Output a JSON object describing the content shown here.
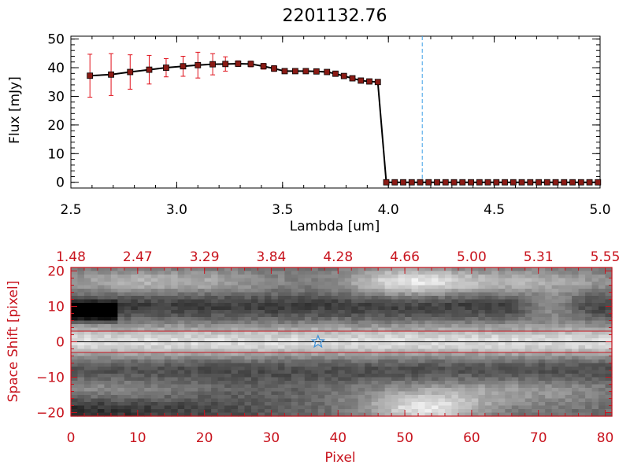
{
  "colors": {
    "axis_top": "#000000",
    "axis_bottom": "#c8141e",
    "errorbar": "#e0101a",
    "marker": "#8a1a14",
    "vline": "#3fa0e6",
    "star": "#3a8fd8",
    "background": "#ffffff"
  },
  "chart_data": [
    {
      "type": "line",
      "title": "2201132.76",
      "xlabel": "Lambda [um]",
      "ylabel": "Flux [mJy]",
      "xlim": [
        2.5,
        5.0
      ],
      "ylim": [
        -2,
        51
      ],
      "xticks": [
        2.5,
        3.0,
        3.5,
        4.0,
        4.5,
        5.0
      ],
      "xtick_labels": [
        "2.5",
        "3.0",
        "3.5",
        "4.0",
        "4.5",
        "5.0"
      ],
      "yticks": [
        0,
        10,
        20,
        30,
        40,
        50
      ],
      "ytick_labels": [
        "0",
        "10",
        "20",
        "30",
        "40",
        "50"
      ],
      "vline_x": 4.16,
      "series": [
        {
          "name": "flux",
          "x": [
            2.59,
            2.69,
            2.78,
            2.87,
            2.95,
            3.03,
            3.1,
            3.17,
            3.23,
            3.29,
            3.35,
            3.41,
            3.46,
            3.51,
            3.56,
            3.61,
            3.66,
            3.71,
            3.75,
            3.79,
            3.83,
            3.87,
            3.91,
            3.95,
            3.99,
            4.03,
            4.07,
            4.11,
            4.15,
            4.19,
            4.23,
            4.27,
            4.31,
            4.35,
            4.39,
            4.43,
            4.47,
            4.51,
            4.55,
            4.59,
            4.63,
            4.67,
            4.71,
            4.75,
            4.79,
            4.83,
            4.87,
            4.91,
            4.95,
            4.99
          ],
          "y": [
            37.2,
            37.6,
            38.5,
            39.3,
            40.0,
            40.5,
            40.9,
            41.2,
            41.3,
            41.4,
            41.3,
            40.5,
            39.7,
            38.8,
            38.8,
            38.8,
            38.7,
            38.5,
            37.9,
            37.1,
            36.3,
            35.5,
            35.2,
            35.0,
            0,
            0,
            0,
            0,
            0,
            0,
            0,
            0,
            0,
            0,
            0,
            0,
            0,
            0,
            0,
            0,
            0,
            0,
            0,
            0,
            0,
            0,
            0,
            0,
            0,
            0
          ],
          "yerr": [
            7.5,
            7.3,
            6.0,
            5.0,
            3.2,
            3.5,
            4.5,
            3.7,
            2.5,
            1.0,
            1.0,
            1.0,
            1.0,
            0.8,
            0.7,
            0.7,
            0.6,
            0.6,
            0.6,
            0.6,
            0.6,
            0.6,
            0.6,
            0.6,
            0,
            0,
            0,
            0,
            0,
            0,
            0,
            0,
            0,
            0,
            0,
            0,
            0,
            0,
            0,
            0,
            0,
            0,
            0,
            0,
            0,
            0,
            0,
            0,
            0,
            0
          ]
        }
      ]
    },
    {
      "type": "heatmap",
      "xlabel": "Pixel",
      "ylabel": "Space Shift [pixel]",
      "xlim": [
        0,
        81
      ],
      "ylim": [
        -21,
        21
      ],
      "xticks": [
        0,
        10,
        20,
        30,
        40,
        50,
        60,
        70,
        80
      ],
      "xtick_labels": [
        "0",
        "10",
        "20",
        "30",
        "40",
        "50",
        "60",
        "70",
        "80"
      ],
      "yticks": [
        -20,
        -10,
        0,
        10,
        20
      ],
      "ytick_labels": [
        "−20",
        "−10",
        "0",
        "10",
        "20"
      ],
      "top_ticks": [
        0,
        10,
        20,
        30,
        40,
        50,
        60,
        70,
        80
      ],
      "top_tick_labels": [
        "1.48",
        "2.47",
        "3.29",
        "3.84",
        "4.28",
        "4.66",
        "5.00",
        "5.31",
        "5.55"
      ],
      "aperture_lines_y": [
        -3,
        0,
        3
      ],
      "star_marker": {
        "x": 37,
        "y": 0
      },
      "columns": 81,
      "rows": 42
    }
  ]
}
